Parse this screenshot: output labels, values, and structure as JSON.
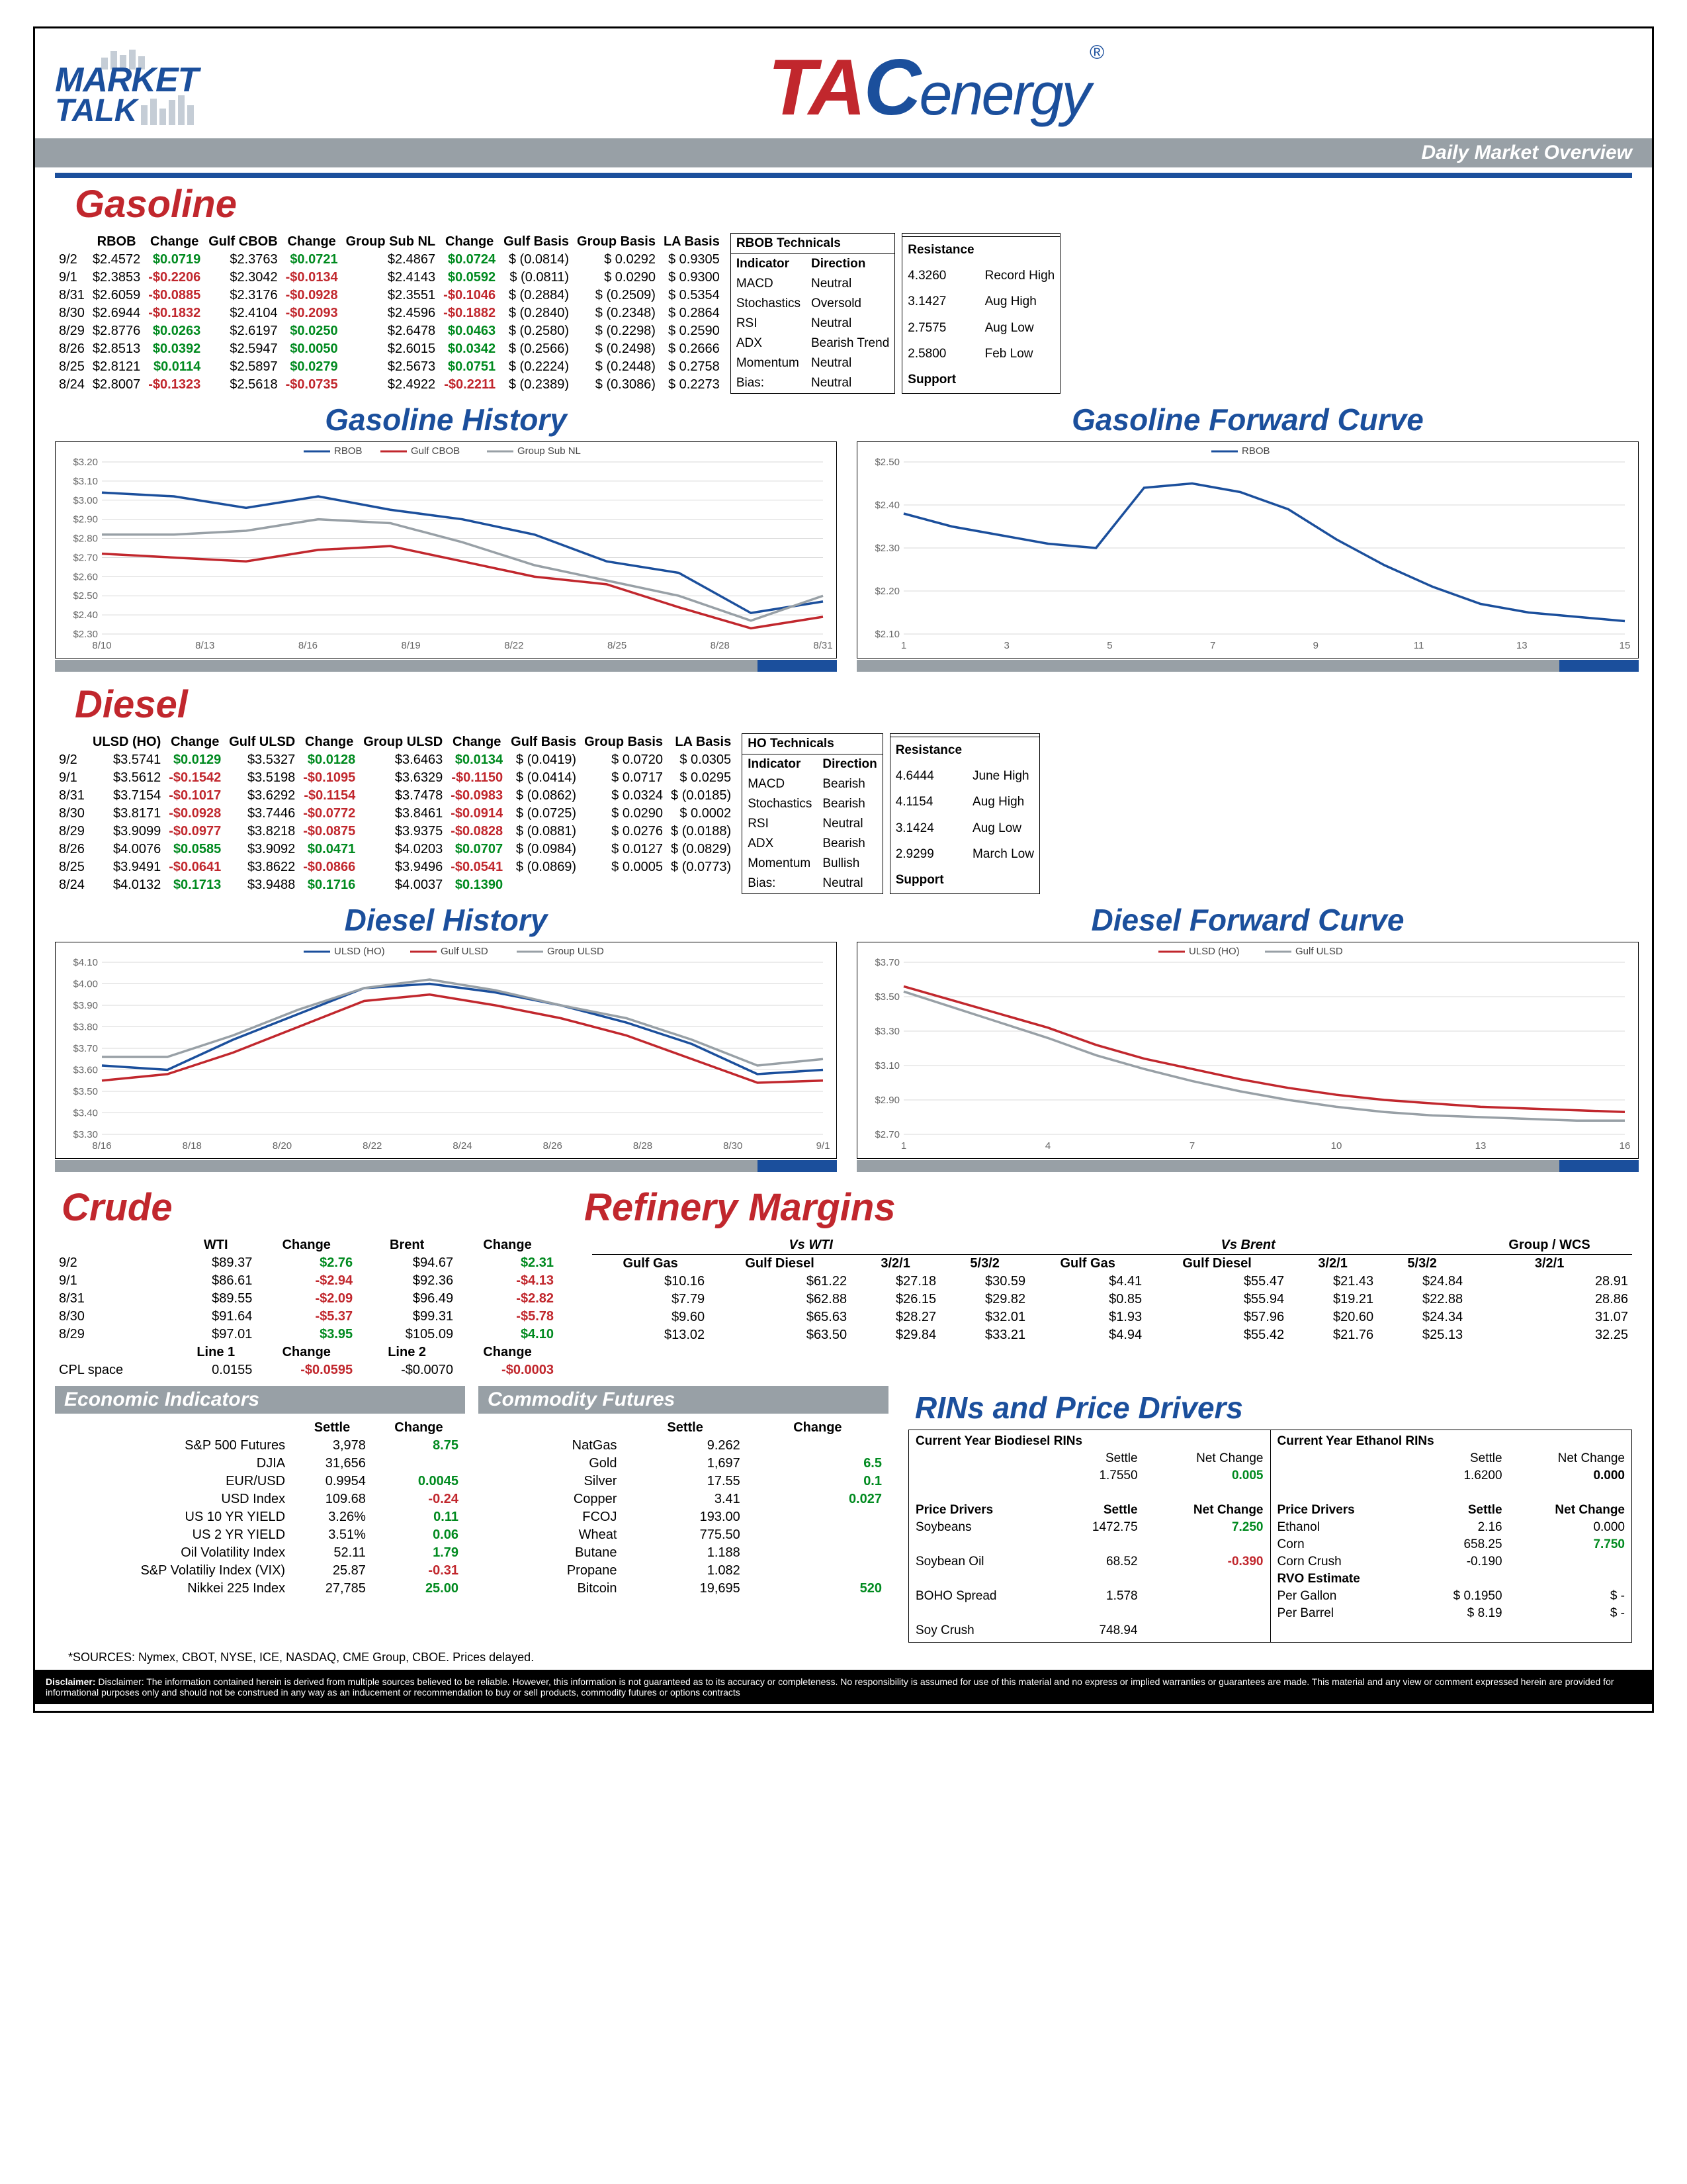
{
  "header": {
    "market": "MARKET",
    "talk": "TALK",
    "subtitle": "Daily Market Overview"
  },
  "gasoline": {
    "title": "Gasoline",
    "cols": [
      "",
      "RBOB",
      "Change",
      "Gulf CBOB",
      "Change",
      "Group Sub NL",
      "Change",
      "Gulf Basis",
      "Group Basis",
      "LA Basis"
    ],
    "rows": [
      [
        "9/2",
        "$2.4572",
        "$0.0719",
        "$2.3763",
        "$0.0721",
        "$2.4867",
        "$0.0724",
        "$ (0.0814)",
        "$      0.0292",
        "$    0.9305"
      ],
      [
        "9/1",
        "$2.3853",
        "-$0.2206",
        "$2.3042",
        "-$0.0134",
        "$2.4143",
        "$0.0592",
        "$ (0.0811)",
        "$      0.0290",
        "$    0.9300"
      ],
      [
        "8/31",
        "$2.6059",
        "-$0.0885",
        "$2.3176",
        "-$0.0928",
        "$2.3551",
        "-$0.1046",
        "$ (0.2884)",
        "$    (0.2509)",
        "$    0.5354"
      ],
      [
        "8/30",
        "$2.6944",
        "-$0.1832",
        "$2.4104",
        "-$0.2093",
        "$2.4596",
        "-$0.1882",
        "$ (0.2840)",
        "$    (0.2348)",
        "$    0.2864"
      ],
      [
        "8/29",
        "$2.8776",
        "$0.0263",
        "$2.6197",
        "$0.0250",
        "$2.6478",
        "$0.0463",
        "$ (0.2580)",
        "$    (0.2298)",
        "$    0.2590"
      ],
      [
        "8/26",
        "$2.8513",
        "$0.0392",
        "$2.5947",
        "$0.0050",
        "$2.6015",
        "$0.0342",
        "$ (0.2566)",
        "$    (0.2498)",
        "$    0.2666"
      ],
      [
        "8/25",
        "$2.8121",
        "$0.0114",
        "$2.5897",
        "$0.0279",
        "$2.5673",
        "$0.0751",
        "$ (0.2224)",
        "$    (0.2448)",
        "$    0.2758"
      ],
      [
        "8/24",
        "$2.8007",
        "-$0.1323",
        "$2.5618",
        "-$0.0735",
        "$2.4922",
        "-$0.2211",
        "$ (0.2389)",
        "$    (0.3086)",
        "$    0.2273"
      ]
    ],
    "changeSigns": [
      [
        1,
        1,
        1
      ],
      [
        -1,
        -1,
        1
      ],
      [
        -1,
        -1,
        -1
      ],
      [
        -1,
        -1,
        -1
      ],
      [
        1,
        1,
        1
      ],
      [
        1,
        1,
        1
      ],
      [
        1,
        1,
        1
      ],
      [
        -1,
        -1,
        -1
      ]
    ],
    "tech_title": "RBOB Technicals",
    "tech": [
      [
        "Indicator",
        "Direction"
      ],
      [
        "MACD",
        "Neutral"
      ],
      [
        "Stochastics",
        "Oversold"
      ],
      [
        "RSI",
        "Neutral"
      ],
      [
        "ADX",
        "Bearish Trend"
      ],
      [
        "Momentum",
        "Neutral"
      ],
      [
        "Bias:",
        "Neutral"
      ]
    ],
    "resist": [
      [
        "Resistance",
        ""
      ],
      [
        "4.3260",
        "Record High"
      ],
      [
        "3.1427",
        "Aug High"
      ],
      [
        "2.7575",
        "Aug Low"
      ],
      [
        "2.5800",
        "Feb Low"
      ],
      [
        "Support",
        ""
      ]
    ],
    "hist_title": "Gasoline History",
    "fwd_title": "Gasoline Forward Curve",
    "hist_legend": [
      "RBOB",
      "Gulf CBOB",
      "Group Sub NL"
    ],
    "hist_colors": [
      "#1b4f9c",
      "#c1272d",
      "#98a0a6"
    ],
    "hist_x": [
      "8/10",
      "8/13",
      "8/16",
      "8/19",
      "8/22",
      "8/25",
      "8/28",
      "8/31"
    ],
    "hist_y": [
      "$3.20",
      "$3.10",
      "$3.00",
      "$2.90",
      "$2.80",
      "$2.70",
      "$2.60",
      "$2.50",
      "$2.40",
      "$2.30"
    ],
    "hist_series": {
      "rbob": [
        3.04,
        3.02,
        2.96,
        3.02,
        2.95,
        2.9,
        2.82,
        2.68,
        2.62,
        2.41,
        2.47
      ],
      "cbob": [
        2.72,
        2.7,
        2.68,
        2.74,
        2.76,
        2.68,
        2.6,
        2.56,
        2.44,
        2.33,
        2.39
      ],
      "group": [
        2.82,
        2.82,
        2.84,
        2.9,
        2.88,
        2.78,
        2.66,
        2.58,
        2.5,
        2.37,
        2.5
      ]
    },
    "fwd_legend": [
      "RBOB"
    ],
    "fwd_y": [
      "$2.50",
      "$2.40",
      "$2.30",
      "$2.20",
      "$2.10"
    ],
    "fwd_x": [
      "1",
      "3",
      "5",
      "7",
      "9",
      "11",
      "13",
      "15"
    ],
    "fwd_series": [
      2.38,
      2.35,
      2.33,
      2.31,
      2.3,
      2.44,
      2.45,
      2.43,
      2.39,
      2.32,
      2.26,
      2.21,
      2.17,
      2.15,
      2.14,
      2.13
    ]
  },
  "diesel": {
    "title": "Diesel",
    "cols": [
      "",
      "ULSD (HO)",
      "Change",
      "Gulf ULSD",
      "Change",
      "Group ULSD",
      "Change",
      "Gulf Basis",
      "Group Basis",
      "LA Basis"
    ],
    "rows": [
      [
        "9/2",
        "$3.5741",
        "$0.0129",
        "$3.5327",
        "$0.0128",
        "$3.6463",
        "$0.0134",
        "$ (0.0419)",
        "$      0.0720",
        "$    0.0305"
      ],
      [
        "9/1",
        "$3.5612",
        "-$0.1542",
        "$3.5198",
        "-$0.1095",
        "$3.6329",
        "-$0.1150",
        "$ (0.0414)",
        "$      0.0717",
        "$    0.0295"
      ],
      [
        "8/31",
        "$3.7154",
        "-$0.1017",
        "$3.6292",
        "-$0.1154",
        "$3.7478",
        "-$0.0983",
        "$ (0.0862)",
        "$      0.0324",
        "$  (0.0185)"
      ],
      [
        "8/30",
        "$3.8171",
        "-$0.0928",
        "$3.7446",
        "-$0.0772",
        "$3.8461",
        "-$0.0914",
        "$ (0.0725)",
        "$      0.0290",
        "$    0.0002"
      ],
      [
        "8/29",
        "$3.9099",
        "-$0.0977",
        "$3.8218",
        "-$0.0875",
        "$3.9375",
        "-$0.0828",
        "$ (0.0881)",
        "$      0.0276",
        "$  (0.0188)"
      ],
      [
        "8/26",
        "$4.0076",
        "$0.0585",
        "$3.9092",
        "$0.0471",
        "$4.0203",
        "$0.0707",
        "$ (0.0984)",
        "$      0.0127",
        "$  (0.0829)"
      ],
      [
        "8/25",
        "$3.9491",
        "-$0.0641",
        "$3.8622",
        "-$0.0866",
        "$3.9496",
        "-$0.0541",
        "$ (0.0869)",
        "$      0.0005",
        "$  (0.0773)"
      ],
      [
        "8/24",
        "$4.0132",
        "$0.1713",
        "$3.9488",
        "$0.1716",
        "$4.0037",
        "$0.1390",
        "",
        "",
        ""
      ]
    ],
    "changeSigns": [
      [
        1,
        1,
        1
      ],
      [
        -1,
        -1,
        -1
      ],
      [
        -1,
        -1,
        -1
      ],
      [
        -1,
        -1,
        -1
      ],
      [
        -1,
        -1,
        -1
      ],
      [
        1,
        1,
        1
      ],
      [
        -1,
        -1,
        -1
      ],
      [
        1,
        1,
        1
      ]
    ],
    "tech_title": "HO Technicals",
    "tech": [
      [
        "Indicator",
        "Direction"
      ],
      [
        "MACD",
        "Bearish"
      ],
      [
        "Stochastics",
        "Bearish"
      ],
      [
        "RSI",
        "Neutral"
      ],
      [
        "ADX",
        "Bearish"
      ],
      [
        "Momentum",
        "Bullish"
      ],
      [
        "Bias:",
        "Neutral"
      ]
    ],
    "resist": [
      [
        "Resistance",
        ""
      ],
      [
        "4.6444",
        "June High"
      ],
      [
        "4.1154",
        "Aug High"
      ],
      [
        "3.1424",
        "Aug Low"
      ],
      [
        "2.9299",
        "March Low"
      ],
      [
        "Support",
        ""
      ]
    ],
    "hist_title": "Diesel History",
    "fwd_title": "Diesel Forward Curve",
    "hist_legend": [
      "ULSD (HO)",
      "Gulf ULSD",
      "Group ULSD"
    ],
    "hist_colors": [
      "#1b4f9c",
      "#c1272d",
      "#98a0a6"
    ],
    "hist_x": [
      "8/16",
      "8/18",
      "8/20",
      "8/22",
      "8/24",
      "8/26",
      "8/28",
      "8/30",
      "9/1"
    ],
    "hist_y": [
      "$4.10",
      "$4.00",
      "$3.90",
      "$3.80",
      "$3.70",
      "$3.60",
      "$3.50",
      "$3.40",
      "$3.30"
    ],
    "hist_series": {
      "ulsd": [
        3.62,
        3.6,
        3.74,
        3.86,
        3.98,
        4.0,
        3.96,
        3.9,
        3.82,
        3.72,
        3.58,
        3.6
      ],
      "gulf": [
        3.55,
        3.58,
        3.68,
        3.8,
        3.92,
        3.95,
        3.9,
        3.84,
        3.76,
        3.65,
        3.54,
        3.55
      ],
      "group": [
        3.66,
        3.66,
        3.76,
        3.88,
        3.98,
        4.02,
        3.97,
        3.9,
        3.84,
        3.74,
        3.62,
        3.65
      ]
    },
    "fwd_legend": [
      "ULSD (HO)",
      "Gulf ULSD"
    ],
    "fwd_colors": [
      "#c1272d",
      "#98a0a6"
    ],
    "fwd_y": [
      "$3.70",
      "$3.50",
      "$3.30",
      "$3.10",
      "$2.90",
      "$2.70"
    ],
    "fwd_x": [
      "1",
      "4",
      "7",
      "10",
      "13",
      "16"
    ],
    "fwd_series": {
      "ulsd": [
        3.56,
        3.48,
        3.4,
        3.32,
        3.22,
        3.14,
        3.08,
        3.02,
        2.97,
        2.93,
        2.9,
        2.88,
        2.86,
        2.85,
        2.84,
        2.83
      ],
      "gulf": [
        3.53,
        3.44,
        3.35,
        3.26,
        3.16,
        3.08,
        3.01,
        2.95,
        2.9,
        2.86,
        2.83,
        2.81,
        2.8,
        2.79,
        2.78,
        2.78
      ]
    }
  },
  "crude": {
    "title": "Crude",
    "cols": [
      "",
      "WTI",
      "Change",
      "Brent",
      "Change"
    ],
    "rows": [
      [
        "9/2",
        "$89.37",
        "$2.76",
        "$94.67",
        "$2.31"
      ],
      [
        "9/1",
        "$86.61",
        "-$2.94",
        "$92.36",
        "-$4.13"
      ],
      [
        "8/31",
        "$89.55",
        "-$2.09",
        "$96.49",
        "-$2.82"
      ],
      [
        "8/30",
        "$91.64",
        "-$5.37",
        "$99.31",
        "-$5.78"
      ],
      [
        "8/29",
        "$97.01",
        "$3.95",
        "$105.09",
        "$4.10"
      ]
    ],
    "changeSigns": [
      [
        1,
        1
      ],
      [
        -1,
        -1
      ],
      [
        -1,
        -1
      ],
      [
        -1,
        -1
      ],
      [
        1,
        1
      ]
    ],
    "cpl_cols": [
      "",
      "Line 1",
      "Change",
      "Line 2",
      "Change"
    ],
    "cpl_row": [
      "CPL space",
      "0.0155",
      "-$0.0595",
      "-$0.0070",
      "-$0.0003"
    ],
    "cpl_signs": [
      -1,
      -1
    ]
  },
  "margins": {
    "title": "Refinery Margins",
    "head1": [
      "Vs WTI",
      "Vs Brent",
      "Group / WCS"
    ],
    "cols": [
      "Gulf Gas",
      "Gulf Diesel",
      "3/2/1",
      "5/3/2",
      "Gulf Gas",
      "Gulf Diesel",
      "3/2/1",
      "5/3/2",
      "3/2/1"
    ],
    "rows": [
      [
        "$10.16",
        "$61.22",
        "$27.18",
        "$30.59",
        "$4.41",
        "$55.47",
        "$21.43",
        "$24.84",
        "28.91"
      ],
      [
        "$7.79",
        "$62.88",
        "$26.15",
        "$29.82",
        "$0.85",
        "$55.94",
        "$19.21",
        "$22.88",
        "28.86"
      ],
      [
        "$9.60",
        "$65.63",
        "$28.27",
        "$32.01",
        "$1.93",
        "$57.96",
        "$20.60",
        "$24.34",
        "31.07"
      ],
      [
        "$13.02",
        "$63.50",
        "$29.84",
        "$33.21",
        "$4.94",
        "$55.42",
        "$21.76",
        "$25.13",
        "32.25"
      ]
    ]
  },
  "econ": {
    "title1": "Economic Indicators",
    "title2": "Commodity Futures",
    "left": [
      [
        "S&P 500 Futures",
        "3,978",
        "8.75",
        1
      ],
      [
        "DJIA",
        "31,656",
        "",
        0
      ],
      [
        "EUR/USD",
        "0.9954",
        "0.0045",
        1
      ],
      [
        "USD Index",
        "109.68",
        "-0.24",
        -1
      ],
      [
        "US 10 YR YIELD",
        "3.26%",
        "0.11",
        1
      ],
      [
        "US 2 YR YIELD",
        "3.51%",
        "0.06",
        1
      ],
      [
        "Oil Volatility Index",
        "52.11",
        "1.79",
        1
      ],
      [
        "S&P Volatiliy Index (VIX)",
        "25.87",
        "-0.31",
        -1
      ],
      [
        "Nikkei 225 Index",
        "27,785",
        "25.00",
        1
      ]
    ],
    "right": [
      [
        "NatGas",
        "9.262",
        "",
        0
      ],
      [
        "Gold",
        "1,697",
        "6.5",
        1
      ],
      [
        "Silver",
        "17.55",
        "0.1",
        1
      ],
      [
        "Copper",
        "3.41",
        "0.027",
        1
      ],
      [
        "FCOJ",
        "193.00",
        "",
        0
      ],
      [
        "Wheat",
        "775.50",
        "",
        0
      ],
      [
        "Butane",
        "1.188",
        "",
        0
      ],
      [
        "Propane",
        "1.082",
        "",
        0
      ],
      [
        "Bitcoin",
        "19,695",
        "520",
        1
      ]
    ]
  },
  "rins": {
    "title": "RINs and Price Drivers",
    "bio_title": "Current Year Biodiesel RINs",
    "eth_title": "Current Year Ethanol RINs",
    "bio": [
      [
        "",
        "Settle",
        "Net Change"
      ],
      [
        "",
        "1.7550",
        "0.005"
      ]
    ],
    "eth": [
      [
        "",
        "Settle",
        "Net Change"
      ],
      [
        "",
        "1.6200",
        "0.000"
      ]
    ],
    "bio_drivers": [
      [
        "Price Drivers",
        "Settle",
        "Net Change"
      ],
      [
        "Soybeans",
        "1472.75",
        "7.250"
      ],
      [
        "Soybean Oil",
        "68.52",
        "-0.390"
      ],
      [
        "BOHO Spread",
        "1.578",
        ""
      ],
      [
        "Soy Crush",
        "748.94",
        ""
      ]
    ],
    "bio_signs": [
      0,
      1,
      -1,
      0,
      0
    ],
    "eth_drivers": [
      [
        "Price Drivers",
        "Settle",
        "Net Change"
      ],
      [
        "Ethanol",
        "2.16",
        "0.000"
      ],
      [
        "Corn",
        "658.25",
        "7.750"
      ],
      [
        "Corn Crush",
        "-0.190",
        ""
      ],
      [
        "RVO Estimate",
        "",
        ""
      ],
      [
        "Per Gallon",
        "$    0.1950",
        "$          -"
      ],
      [
        "Per Barrel",
        "$        8.19",
        "$          -"
      ]
    ],
    "eth_signs": [
      0,
      0,
      1,
      0,
      0,
      0,
      0
    ]
  },
  "sources": "*SOURCES: Nymex, CBOT, NYSE, ICE, NASDAQ, CME Group, CBOE.   Prices delayed.",
  "disclaimer": "Disclaimer: The information contained herein is derived from multiple sources believed to be reliable.  However, this information is not guaranteed as to its accuracy or completeness. No responsibility is assumed for use of this material and no express or implied warranties or guarantees are made. This material and any view or comment expressed herein are provided for informational purposes only and should not be construed in any way as an inducement or recommendation to buy or sell products, commodity futures or options contracts"
}
